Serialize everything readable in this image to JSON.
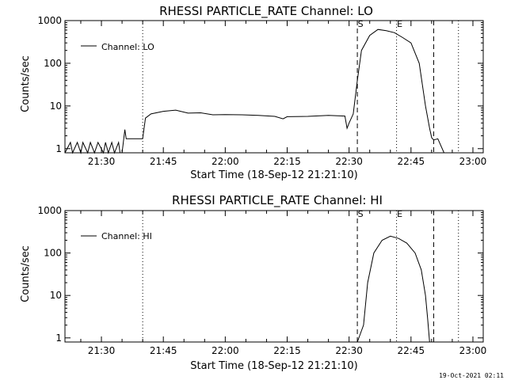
{
  "footer": {
    "stamp": "19-Oct-2021 02:11"
  },
  "chart_data": [
    {
      "type": "line",
      "title": "RHESSI PARTICLE_RATE Channel: LO",
      "xlabel": "Start Time (18-Sep-12 21:21:10)",
      "ylabel": "Counts/sec",
      "y_scale": "log",
      "xlim": [
        "21:21:10",
        "23:02:30"
      ],
      "ylim": [
        0.8,
        1000
      ],
      "x_ticks": [
        "21:30",
        "21:45",
        "22:00",
        "22:15",
        "22:30",
        "22:45",
        "23:00"
      ],
      "y_ticks": [
        "1",
        "10",
        "100",
        "1000"
      ],
      "legend": {
        "position": "top-left",
        "entries": [
          "Channel: LO"
        ]
      },
      "series": [
        {
          "name": "Channel: LO",
          "x": [
            "21:21:10",
            "21:22:30",
            "21:23:00",
            "21:24:10",
            "21:25:00",
            "21:25:30",
            "21:26:40",
            "21:27:20",
            "21:28:20",
            "21:29:10",
            "21:30:30",
            "21:31:00",
            "21:31:40",
            "21:32:30",
            "21:33:10",
            "21:34:10",
            "21:34:30",
            "21:35:00",
            "21:35:40",
            "21:36:00",
            "21:36:30",
            "21:40:00",
            "21:40:40",
            "21:42:00",
            "21:45:00",
            "21:48:00",
            "21:51:00",
            "21:54:00",
            "21:57:00",
            "22:00:00",
            "22:04:00",
            "22:08:00",
            "22:12:00",
            "22:14:00",
            "22:15:00",
            "22:20:00",
            "22:25:00",
            "22:29:00",
            "22:29:30",
            "22:30:00",
            "22:31:00",
            "22:32:00",
            "22:33:00",
            "22:35:00",
            "22:37:00",
            "22:39:00",
            "22:41:00",
            "22:43:00",
            "22:45:00",
            "22:47:00",
            "22:48:30",
            "22:49:30",
            "22:50:00",
            "22:50:30",
            "22:51:30",
            "22:53:00",
            "22:55:00"
          ],
          "values": [
            0.8,
            1.4,
            0.8,
            1.4,
            0.8,
            1.4,
            0.8,
            1.4,
            0.8,
            1.4,
            0.8,
            1.4,
            0.8,
            1.4,
            0.8,
            1.4,
            0.8,
            0.8,
            2.8,
            1.7,
            1.7,
            1.7,
            5.2,
            6.5,
            7.5,
            8.0,
            6.8,
            6.9,
            6.2,
            6.3,
            6.2,
            6.0,
            5.7,
            5.0,
            5.6,
            5.7,
            6.0,
            5.8,
            3.0,
            4.0,
            6.5,
            40,
            200,
            450,
            620,
            580,
            520,
            400,
            300,
            100,
            10,
            3.0,
            1.8,
            1.6,
            1.7,
            0.8,
            0.8
          ]
        }
      ],
      "markers": {
        "dashed": [
          "22:32:00",
          "22:50:30"
        ],
        "dotted": [
          "21:40:00",
          "22:41:30",
          "22:56:30"
        ],
        "labels": [
          "S",
          "E"
        ]
      }
    },
    {
      "type": "line",
      "title": "RHESSI PARTICLE_RATE Channel: HI",
      "xlabel": "Start Time (18-Sep-12 21:21:10)",
      "ylabel": "Counts/sec",
      "y_scale": "log",
      "xlim": [
        "21:21:10",
        "23:02:30"
      ],
      "ylim": [
        0.8,
        1000
      ],
      "x_ticks": [
        "21:30",
        "21:45",
        "22:00",
        "22:15",
        "22:30",
        "22:45",
        "23:00"
      ],
      "y_ticks": [
        "1",
        "10",
        "100",
        "1000"
      ],
      "legend": {
        "position": "top-left",
        "entries": [
          "Channel: HI"
        ]
      },
      "series": [
        {
          "name": "Channel: HI",
          "x": [
            "22:32:00",
            "22:33:30",
            "22:34:30",
            "22:36:00",
            "22:38:00",
            "22:40:00",
            "22:42:00",
            "22:44:00",
            "22:46:00",
            "22:47:30",
            "22:48:30",
            "22:49:00",
            "22:49:30"
          ],
          "values": [
            0.8,
            2.0,
            20,
            100,
            200,
            250,
            220,
            170,
            100,
            40,
            10,
            3.0,
            0.8
          ]
        }
      ],
      "markers": {
        "dashed": [
          "22:32:00",
          "22:50:30"
        ],
        "dotted": [
          "21:40:00",
          "22:41:30",
          "22:56:30"
        ],
        "labels": [
          "S",
          "E"
        ]
      }
    }
  ]
}
